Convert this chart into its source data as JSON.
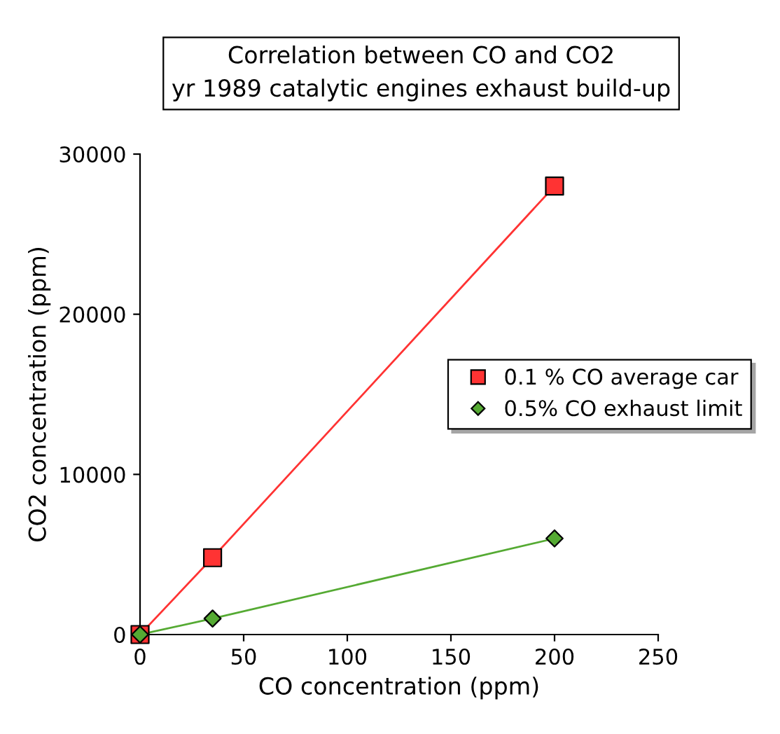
{
  "chart_data": {
    "type": "line",
    "title": "Correlation between CO and CO2",
    "subtitle": "yr 1989 catalytic engines exhaust build-up",
    "xlabel": "CO concentration (ppm)",
    "ylabel": "CO2 concentration (ppm)",
    "x": [
      0,
      35,
      200
    ],
    "series": [
      {
        "name": "0.1 % CO average car",
        "color": "#ff3333",
        "marker": "square",
        "values": [
          0,
          4800,
          28000
        ]
      },
      {
        "name": "0.5% CO exhaust limit",
        "color": "#55aa33",
        "marker": "diamond",
        "values": [
          0,
          1000,
          6000
        ]
      }
    ],
    "xlim": [
      0,
      250
    ],
    "xticks": [
      0,
      50,
      100,
      150,
      200,
      250
    ],
    "ylim": [
      0,
      30000
    ],
    "yticks": [
      0,
      10000,
      20000,
      30000
    ],
    "grid": false,
    "legend": "right"
  }
}
